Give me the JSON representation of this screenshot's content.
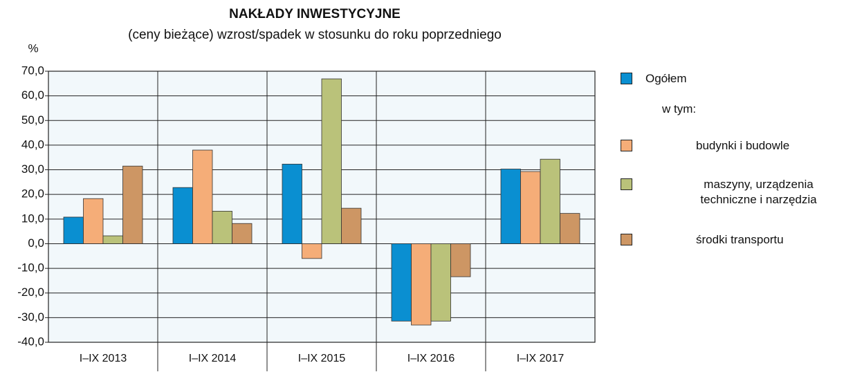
{
  "chart_data": {
    "type": "bar",
    "title": "NAKŁADY  INWESTYCYJNE",
    "subtitle": "(ceny bieżące) wzrost/spadek w stosunku do roku poprzedniego",
    "y_label": "%",
    "legend_note": "w tym:",
    "categories": [
      "I–IX 2013",
      "I–IX 2014",
      "I–IX 2015",
      "I–IX 2016",
      "I–IX 2017"
    ],
    "series": [
      {
        "name": "Ogółem",
        "color": "#0a8fd1",
        "values": [
          10.8,
          22.8,
          32.3,
          -31.4,
          30.3
        ]
      },
      {
        "name": "budynki i budowle",
        "color": "#f5ad78",
        "values": [
          18.3,
          38.0,
          -6.0,
          -33.0,
          29.3
        ]
      },
      {
        "name": "maszyny, urządzenia techniczne i narzędzia",
        "color": "#bac27a",
        "values": [
          3.2,
          13.2,
          66.9,
          -31.4,
          34.3
        ]
      },
      {
        "name": "środki transportu",
        "color": "#cd9664",
        "values": [
          31.5,
          8.2,
          14.4,
          -13.4,
          12.3
        ]
      }
    ],
    "ylim": [
      -40,
      70
    ],
    "yticks": [
      {
        "value": -40,
        "label": "-40,0"
      },
      {
        "value": -30,
        "label": "-30,0"
      },
      {
        "value": -20,
        "label": "-20,0"
      },
      {
        "value": -10,
        "label": "-10,0"
      },
      {
        "value": 0,
        "label": "0,0"
      },
      {
        "value": 10,
        "label": "10,0"
      },
      {
        "value": 20,
        "label": "20,0"
      },
      {
        "value": 30,
        "label": "30,0"
      },
      {
        "value": 40,
        "label": "40,0"
      },
      {
        "value": 50,
        "label": "50,0"
      },
      {
        "value": 60,
        "label": "60,0"
      },
      {
        "value": 70,
        "label": "70,0"
      }
    ],
    "grid": true
  }
}
